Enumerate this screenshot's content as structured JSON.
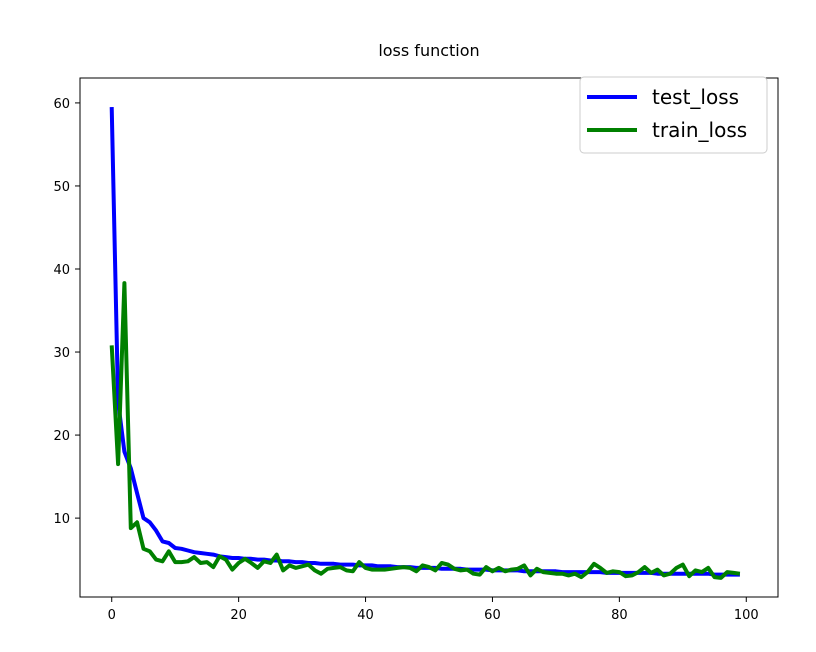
{
  "chart_data": {
    "type": "line",
    "title": "loss function",
    "xlabel": "",
    "ylabel": "",
    "xlim": [
      -5,
      105
    ],
    "ylim": [
      0.5,
      63
    ],
    "xticks": [
      0,
      20,
      40,
      60,
      80,
      100
    ],
    "yticks": [
      10,
      20,
      30,
      40,
      50,
      60
    ],
    "grid": false,
    "legend_position": "top-right",
    "series": [
      {
        "name": "test_loss",
        "color": "#0000ff",
        "x": [
          0,
          1,
          2,
          3,
          4,
          5,
          6,
          7,
          8,
          9,
          10,
          11,
          12,
          13,
          14,
          15,
          16,
          17,
          18,
          19,
          20,
          21,
          22,
          23,
          24,
          25,
          26,
          27,
          28,
          29,
          30,
          31,
          32,
          33,
          34,
          35,
          36,
          37,
          38,
          39,
          40,
          41,
          42,
          43,
          44,
          45,
          46,
          47,
          48,
          49,
          50,
          51,
          52,
          53,
          54,
          55,
          56,
          57,
          58,
          59,
          60,
          61,
          62,
          63,
          64,
          65,
          66,
          67,
          68,
          69,
          70,
          71,
          72,
          73,
          74,
          75,
          76,
          77,
          78,
          79,
          80,
          81,
          82,
          83,
          84,
          85,
          86,
          87,
          88,
          89,
          90,
          91,
          92,
          93,
          94,
          95,
          96,
          97,
          98,
          99
        ],
        "y": [
          59.5,
          24,
          18,
          16,
          13,
          10,
          9.5,
          8.5,
          7.2,
          7,
          6.4,
          6.3,
          6.1,
          5.9,
          5.8,
          5.7,
          5.6,
          5.4,
          5.3,
          5.2,
          5.2,
          5.1,
          5.1,
          5.0,
          5.0,
          4.9,
          4.9,
          4.8,
          4.8,
          4.7,
          4.7,
          4.6,
          4.6,
          4.5,
          4.5,
          4.5,
          4.4,
          4.4,
          4.4,
          4.3,
          4.3,
          4.3,
          4.2,
          4.2,
          4.2,
          4.1,
          4.1,
          4.1,
          4.0,
          4.0,
          4.0,
          4.0,
          3.9,
          3.9,
          3.9,
          3.9,
          3.8,
          3.8,
          3.8,
          3.8,
          3.7,
          3.7,
          3.7,
          3.7,
          3.7,
          3.6,
          3.6,
          3.6,
          3.6,
          3.6,
          3.6,
          3.5,
          3.5,
          3.5,
          3.5,
          3.5,
          3.5,
          3.5,
          3.4,
          3.4,
          3.4,
          3.4,
          3.4,
          3.4,
          3.4,
          3.4,
          3.3,
          3.3,
          3.3,
          3.3,
          3.3,
          3.3,
          3.3,
          3.3,
          3.3,
          3.2,
          3.2,
          3.2,
          3.2,
          3.2
        ]
      },
      {
        "name": "train_loss",
        "color": "#008000",
        "x": [
          0,
          1,
          2,
          3,
          4,
          5,
          6,
          7,
          8,
          9,
          10,
          11,
          12,
          13,
          14,
          15,
          16,
          17,
          18,
          19,
          20,
          21,
          22,
          23,
          24,
          25,
          26,
          27,
          28,
          29,
          30,
          31,
          32,
          33,
          34,
          35,
          36,
          37,
          38,
          39,
          40,
          41,
          42,
          43,
          44,
          45,
          46,
          47,
          48,
          49,
          50,
          51,
          52,
          53,
          54,
          55,
          56,
          57,
          58,
          59,
          60,
          61,
          62,
          63,
          64,
          65,
          66,
          67,
          68,
          69,
          70,
          71,
          72,
          73,
          74,
          75,
          76,
          77,
          78,
          79,
          80,
          81,
          82,
          83,
          84,
          85,
          86,
          87,
          88,
          89,
          90,
          91,
          92,
          93,
          94,
          95,
          96,
          97,
          98,
          99
        ],
        "y": [
          30.8,
          16.5,
          38.3,
          8.8,
          9.5,
          6.3,
          6.0,
          5.0,
          4.8,
          6.0,
          4.7,
          4.7,
          4.8,
          5.3,
          4.6,
          4.7,
          4.1,
          5.4,
          5.0,
          3.8,
          4.6,
          5.1,
          4.6,
          4.0,
          4.8,
          4.6,
          5.6,
          3.7,
          4.3,
          4.0,
          4.2,
          4.4,
          3.7,
          3.3,
          3.9,
          4.0,
          4.1,
          3.7,
          3.6,
          4.7,
          4.0,
          3.8,
          3.8,
          3.8,
          3.9,
          4.0,
          4.1,
          4.0,
          3.6,
          4.3,
          4.1,
          3.7,
          4.6,
          4.4,
          3.9,
          3.7,
          3.8,
          3.3,
          3.2,
          4.1,
          3.6,
          4.0,
          3.6,
          3.8,
          3.9,
          4.3,
          3.1,
          3.9,
          3.5,
          3.4,
          3.3,
          3.3,
          3.1,
          3.3,
          2.9,
          3.5,
          4.5,
          4.0,
          3.4,
          3.6,
          3.5,
          3.0,
          3.1,
          3.5,
          4.1,
          3.4,
          3.8,
          3.1,
          3.3,
          4.0,
          4.4,
          3.0,
          3.7,
          3.5,
          4.0,
          2.9,
          2.8,
          3.5,
          3.4,
          3.3
        ]
      }
    ]
  }
}
